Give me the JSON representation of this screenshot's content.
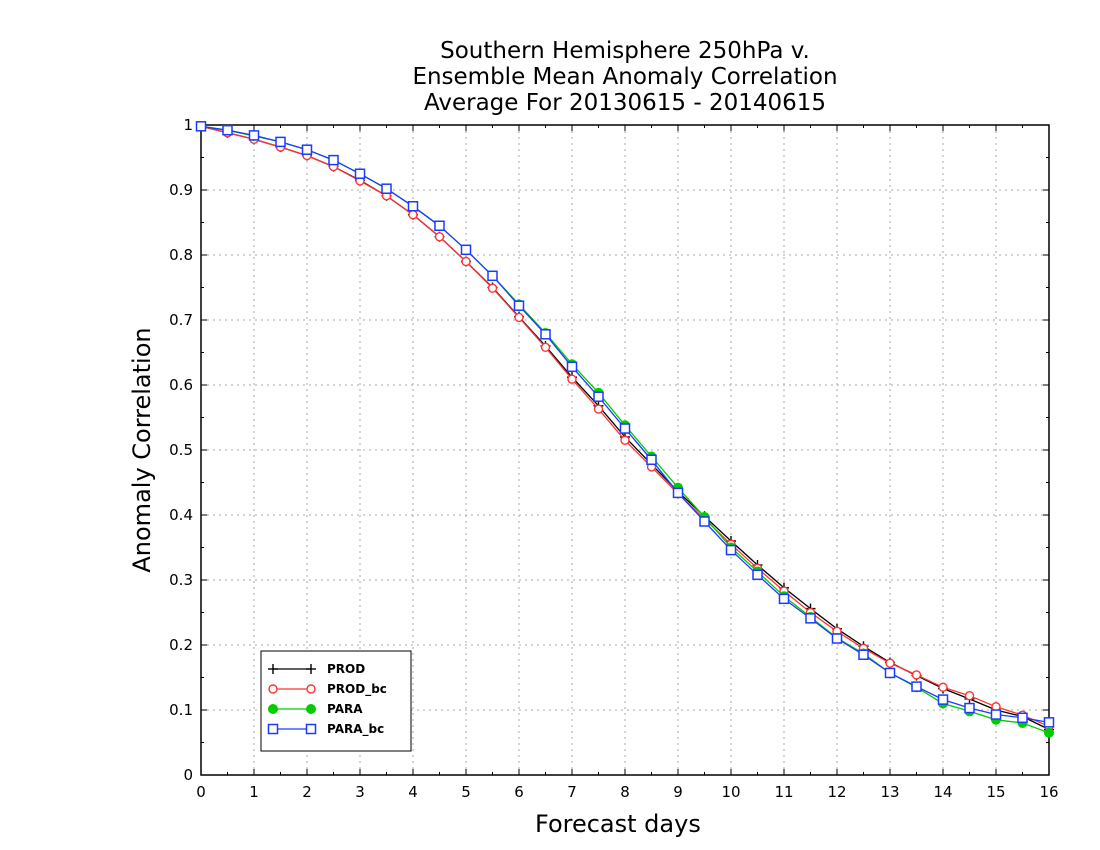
{
  "chart_data": {
    "type": "line",
    "title_lines": [
      "Southern Hemisphere 250hPa v.",
      "Ensemble Mean Anomaly Correlation",
      "Average For 20130615 - 20140615"
    ],
    "xlabel": "Forecast days",
    "ylabel": "Anomaly Correlation",
    "xlim": [
      0,
      16
    ],
    "ylim": [
      0,
      1
    ],
    "x_ticks": [
      "0",
      "1",
      "2",
      "3",
      "4",
      "5",
      "6",
      "7",
      "8",
      "9",
      "10",
      "11",
      "12",
      "13",
      "14",
      "15",
      "16"
    ],
    "y_ticks": [
      "0",
      "0.1",
      "0.2",
      "0.3",
      "0.4",
      "0.5",
      "0.6",
      "0.7",
      "0.8",
      "0.9",
      "1"
    ],
    "grid": true,
    "legend_position": "bottom-left",
    "x": [
      0,
      0.5,
      1,
      1.5,
      2,
      2.5,
      3,
      3.5,
      4,
      4.5,
      5,
      5.5,
      6,
      6.5,
      7,
      7.5,
      8,
      8.5,
      9,
      9.5,
      10,
      10.5,
      11,
      11.5,
      12,
      12.5,
      13,
      13.5,
      14,
      14.5,
      15,
      15.5,
      16
    ],
    "series": [
      {
        "name": "PROD",
        "color": "#000000",
        "marker": "plus",
        "values": [
          0.998,
          0.988,
          0.978,
          0.966,
          0.953,
          0.936,
          0.915,
          0.891,
          0.862,
          0.828,
          0.79,
          0.75,
          0.705,
          0.66,
          0.612,
          0.568,
          0.52,
          0.478,
          0.436,
          0.398,
          0.36,
          0.323,
          0.288,
          0.256,
          0.225,
          0.198,
          0.173,
          0.153,
          0.133,
          0.117,
          0.1,
          0.09,
          0.07
        ]
      },
      {
        "name": "PROD_bc",
        "color": "#ff3333",
        "marker": "circle-open",
        "values": [
          0.998,
          0.988,
          0.978,
          0.966,
          0.953,
          0.936,
          0.914,
          0.891,
          0.862,
          0.828,
          0.79,
          0.749,
          0.704,
          0.658,
          0.609,
          0.563,
          0.515,
          0.474,
          0.433,
          0.394,
          0.355,
          0.318,
          0.283,
          0.25,
          0.221,
          0.195,
          0.172,
          0.154,
          0.135,
          0.122,
          0.105,
          0.092,
          0.075
        ]
      },
      {
        "name": "PARA",
        "color": "#00cc00",
        "marker": "circle-filled",
        "values": [
          0.998,
          0.992,
          0.983,
          0.974,
          0.962,
          0.946,
          0.925,
          0.902,
          0.875,
          0.845,
          0.808,
          0.768,
          0.724,
          0.68,
          0.632,
          0.588,
          0.538,
          0.49,
          0.442,
          0.397,
          0.35,
          0.313,
          0.275,
          0.243,
          0.211,
          0.187,
          0.157,
          0.135,
          0.11,
          0.098,
          0.085,
          0.08,
          0.065
        ]
      },
      {
        "name": "PARA_bc",
        "color": "#1a3cff",
        "marker": "square-open",
        "values": [
          0.998,
          0.992,
          0.984,
          0.974,
          0.962,
          0.946,
          0.925,
          0.902,
          0.875,
          0.845,
          0.808,
          0.768,
          0.722,
          0.678,
          0.628,
          0.582,
          0.533,
          0.485,
          0.434,
          0.39,
          0.346,
          0.308,
          0.271,
          0.241,
          0.21,
          0.185,
          0.157,
          0.136,
          0.116,
          0.103,
          0.093,
          0.088,
          0.081
        ]
      }
    ]
  }
}
